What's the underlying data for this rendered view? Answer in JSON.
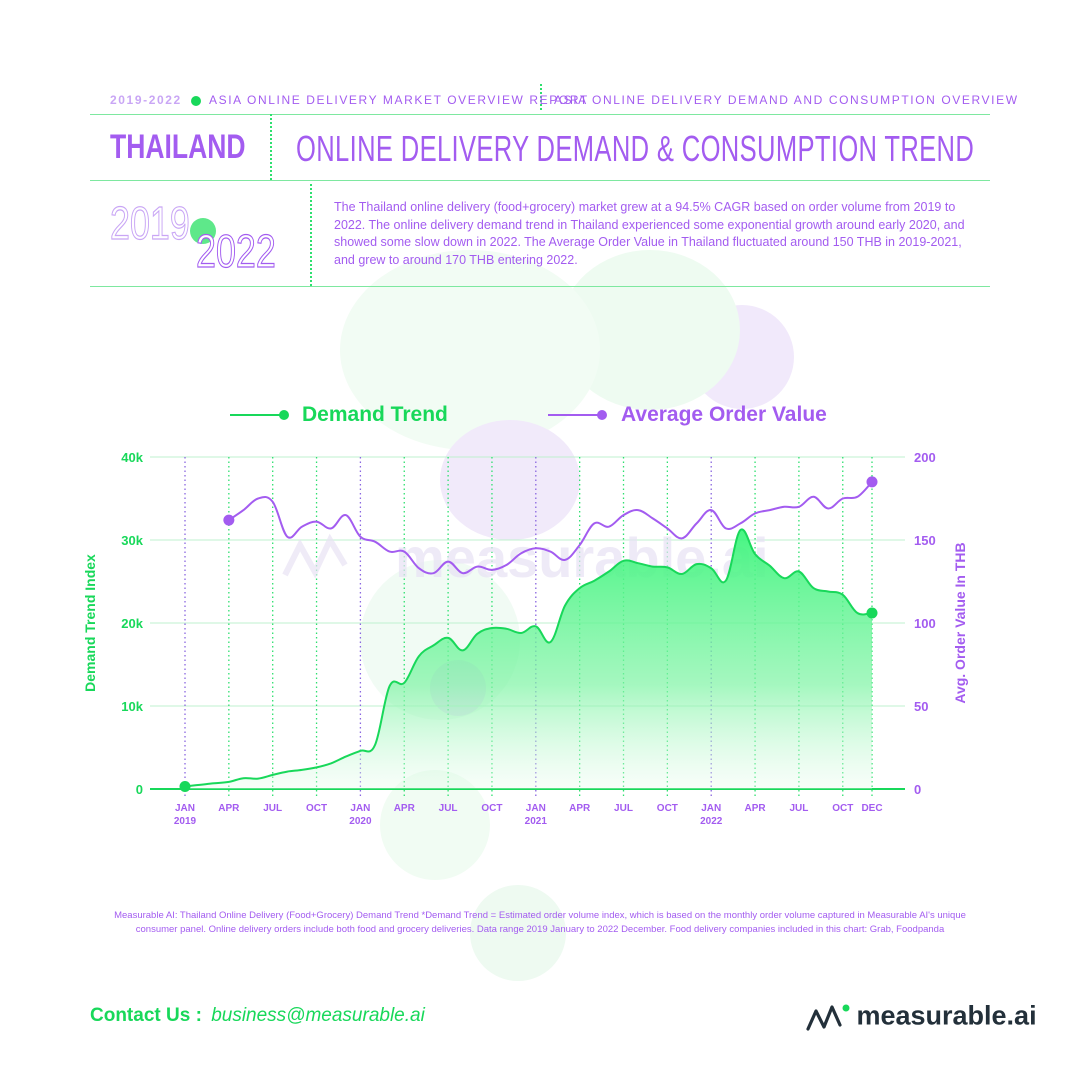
{
  "header": {
    "year_badge": "2019-2022",
    "report_title": "ASIA ONLINE DELIVERY MARKET OVERVIEW REPORT",
    "section_title": "ASIA ONLINE DELIVERY DEMAND AND CONSUMPTION OVERVIEW",
    "country": "THAILAND",
    "main_title": "ONLINE DELIVERY DEMAND & CONSUMPTION TREND",
    "year_start": "2019",
    "year_end": "2022",
    "description": "The Thailand online delivery (food+grocery) market grew at a 94.5% CAGR based on order volume from 2019 to 2022. The online delivery demand trend in Thailand experienced some exponential growth around early 2020, and showed some slow down in 2022. The Average Order Value in Thailand fluctuated around 150 THB in 2019-2021, and grew to around 170 THB entering 2022."
  },
  "colors": {
    "green": "#18d85a",
    "purple": "#a35cf0",
    "light_green": "#7ee8a0"
  },
  "chart_data": {
    "type": "area",
    "legend": [
      "Demand Trend",
      "Average Order Value"
    ],
    "legend_position": "top",
    "ylabel_left": "Demand Trend Index",
    "ylabel_right": "Avg. Order Value In THB",
    "ylim_left": [
      0,
      40000
    ],
    "ylim_right": [
      0,
      200
    ],
    "yticks_left": [
      "0",
      "10k",
      "20k",
      "30k",
      "40k"
    ],
    "yticks_right": [
      "0",
      "50",
      "100",
      "150",
      "200"
    ],
    "xticks": [
      {
        "label": "JAN",
        "year": "2019",
        "month": 0
      },
      {
        "label": "APR",
        "year": "",
        "month": 3
      },
      {
        "label": "JUL",
        "year": "",
        "month": 6
      },
      {
        "label": "OCT",
        "year": "",
        "month": 9
      },
      {
        "label": "JAN",
        "year": "2020",
        "month": 12
      },
      {
        "label": "APR",
        "year": "",
        "month": 15
      },
      {
        "label": "JUL",
        "year": "",
        "month": 18
      },
      {
        "label": "OCT",
        "year": "",
        "month": 21
      },
      {
        "label": "JAN",
        "year": "2021",
        "month": 24
      },
      {
        "label": "APR",
        "year": "",
        "month": 27
      },
      {
        "label": "JUL",
        "year": "",
        "month": 30
      },
      {
        "label": "OCT",
        "year": "",
        "month": 33
      },
      {
        "label": "JAN",
        "year": "2022",
        "month": 36
      },
      {
        "label": "APR",
        "year": "",
        "month": 39
      },
      {
        "label": "JUL",
        "year": "",
        "month": 42
      },
      {
        "label": "OCT",
        "year": "",
        "month": 45
      },
      {
        "label": "DEC",
        "year": "",
        "month": 47
      }
    ],
    "series": [
      {
        "name": "Demand Trend",
        "axis": "left",
        "x": [
          0,
          1,
          2,
          3,
          4,
          5,
          6,
          7,
          8,
          9,
          10,
          11,
          12,
          13,
          14,
          15,
          16,
          17,
          18,
          19,
          20,
          21,
          22,
          23,
          24,
          25,
          26,
          27,
          28,
          29,
          30,
          31,
          32,
          33,
          34,
          35,
          36,
          37,
          38,
          39,
          40,
          41,
          42,
          43,
          44,
          45,
          46,
          47
        ],
        "values": [
          300,
          500,
          700,
          850,
          1300,
          1250,
          1700,
          2100,
          2300,
          2600,
          3100,
          3900,
          4600,
          5300,
          12400,
          12800,
          16000,
          17300,
          18200,
          16700,
          18700,
          19400,
          19300,
          18800,
          19600,
          17700,
          22100,
          24200,
          25100,
          26200,
          27500,
          27200,
          26800,
          26700,
          25900,
          27100,
          26600,
          25100,
          31200,
          28300,
          26900,
          25400,
          26200,
          24200,
          23800,
          23400,
          21200,
          21200
        ]
      },
      {
        "name": "Average Order Value",
        "axis": "right",
        "x": [
          3,
          4,
          5,
          6,
          7,
          8,
          9,
          10,
          11,
          12,
          13,
          14,
          15,
          16,
          17,
          18,
          19,
          20,
          21,
          22,
          23,
          24,
          25,
          26,
          27,
          28,
          29,
          30,
          31,
          32,
          33,
          34,
          35,
          36,
          37,
          38,
          39,
          40,
          41,
          42,
          43,
          44,
          45,
          46,
          47
        ],
        "values": [
          162,
          168,
          175,
          173,
          152,
          158,
          161,
          157,
          165,
          152,
          149,
          143,
          143,
          133,
          130,
          137,
          130,
          134,
          132,
          135,
          142,
          145,
          143,
          138,
          147,
          160,
          158,
          165,
          168,
          163,
          157,
          151,
          160,
          168,
          157,
          160,
          166,
          168,
          170,
          170,
          176,
          169,
          175,
          176,
          185
        ]
      }
    ],
    "footnote": "Measurable AI: Thailand Online Delivery (Food+Grocery) Demand Trend *Demand Trend = Estimated order volume index, which is based on the monthly order volume captured in Measurable AI's unique consumer panel. Online delivery orders include both food and grocery deliveries. Data range 2019 January to 2022 December. Food delivery companies included in this chart: Grab, Foodpanda"
  },
  "footer": {
    "contact_label": "Contact Us :",
    "contact_email": "business@measurable.ai",
    "brand": "measurable",
    "brand_suffix": ".ai"
  },
  "watermark": "measurable.ai"
}
